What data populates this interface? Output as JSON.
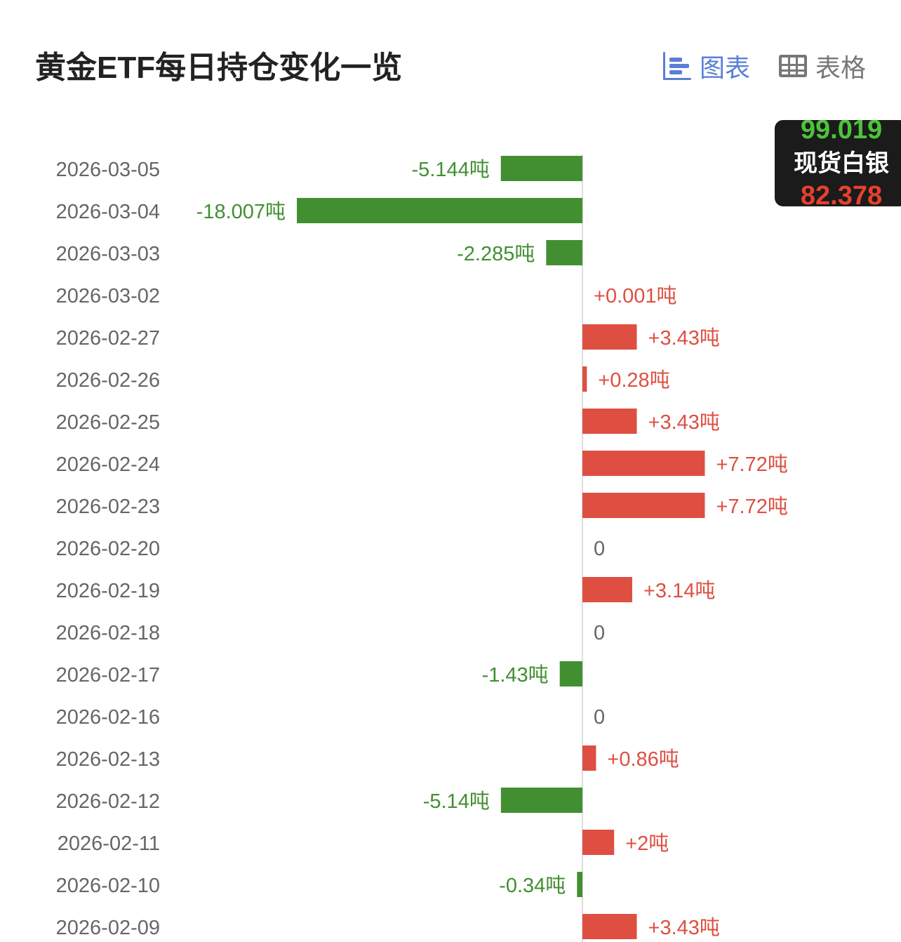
{
  "header": {
    "title": "黄金ETF每日持仓变化一览",
    "tabs": [
      {
        "label": "图表",
        "icon": "bar-chart-icon",
        "active": true
      },
      {
        "label": "表格",
        "icon": "table-icon",
        "active": false
      }
    ]
  },
  "ticker": {
    "up_value": "99.019",
    "name": "现货白银",
    "down_value": "82.378"
  },
  "colors": {
    "positive": "#de4f42",
    "negative": "#428f32",
    "active_tab": "#5b7fd6"
  },
  "chart_data": {
    "type": "bar",
    "orientation": "horizontal",
    "unit": "吨",
    "categories": [
      "2026-03-05",
      "2026-03-04",
      "2026-03-03",
      "2026-03-02",
      "2026-02-27",
      "2026-02-26",
      "2026-02-25",
      "2026-02-24",
      "2026-02-23",
      "2026-02-20",
      "2026-02-19",
      "2026-02-18",
      "2026-02-17",
      "2026-02-16",
      "2026-02-13",
      "2026-02-12",
      "2026-02-11",
      "2026-02-10",
      "2026-02-09"
    ],
    "values": [
      -5.144,
      -18.007,
      -2.285,
      0.001,
      3.43,
      0.28,
      3.43,
      7.72,
      7.72,
      0,
      3.14,
      0,
      -1.43,
      0,
      0.86,
      -5.14,
      2,
      -0.34,
      3.43
    ],
    "labels": [
      "-5.144吨",
      "-18.007吨",
      "-2.285吨",
      "+0.001吨",
      "+3.43吨",
      "+0.28吨",
      "+3.43吨",
      "+7.72吨",
      "+7.72吨",
      "0",
      "+3.14吨",
      "0",
      "-1.43吨",
      "0",
      "+0.86吨",
      "-5.14吨",
      "+2吨",
      "-0.34吨",
      "+3.43吨"
    ]
  }
}
